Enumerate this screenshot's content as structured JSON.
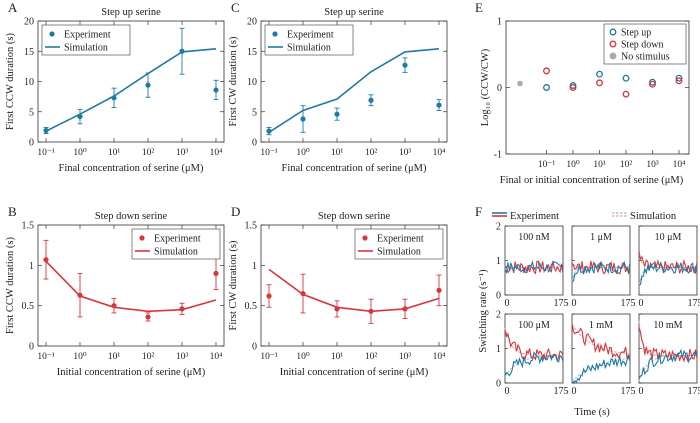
{
  "panels": [
    {
      "id": "A",
      "letter": "A",
      "title": "Step up serine",
      "ylabel": "First CCW duration (s)",
      "xlabel": "Final concentration of serine (μM)",
      "ylim": [
        0,
        20
      ],
      "yticks": [
        "0",
        "5",
        "10",
        "15",
        "20"
      ],
      "xticks": [
        "10⁻¹",
        "10⁰",
        "10¹",
        "10²",
        "10³",
        "10⁴"
      ],
      "color": "#1f7aa6",
      "legend_pos": "top-left",
      "legend": [
        "Experiment",
        "Simulation"
      ],
      "experiment": [
        {
          "x": -1,
          "y": 1.9,
          "err": 0.5
        },
        {
          "x": 0,
          "y": 4.2,
          "err": 1.2
        },
        {
          "x": 1,
          "y": 7.3,
          "err": 1.6
        },
        {
          "x": 2,
          "y": 9.4,
          "err": 2.0
        },
        {
          "x": 3,
          "y": 15.0,
          "err": 3.8
        },
        {
          "x": 4,
          "y": 8.6,
          "err": 1.6
        }
      ],
      "simulation": {
        "x": [
          -1,
          0,
          1,
          2,
          3,
          4
        ],
        "y": [
          1.8,
          4.6,
          7.6,
          11.3,
          14.9,
          15.4
        ]
      }
    },
    {
      "id": "C",
      "letter": "C",
      "title": "Step up serine",
      "ylabel": "First CW duration (s)",
      "xlabel": "Final concentration of serine (μM)",
      "ylim": [
        0,
        20
      ],
      "yticks": [
        "0",
        "5",
        "10",
        "15",
        "20"
      ],
      "xticks": [
        "10⁻¹",
        "10⁰",
        "10¹",
        "10²",
        "10³",
        "10⁴"
      ],
      "color": "#1f7aa6",
      "legend_pos": "top-left",
      "legend": [
        "Experiment",
        "Simulation"
      ],
      "experiment": [
        {
          "x": -1,
          "y": 1.8,
          "err": 0.6
        },
        {
          "x": 0,
          "y": 3.8,
          "err": 2.2
        },
        {
          "x": 1,
          "y": 4.6,
          "err": 1.0
        },
        {
          "x": 2,
          "y": 6.9,
          "err": 0.9
        },
        {
          "x": 3,
          "y": 12.7,
          "err": 1.2
        },
        {
          "x": 4,
          "y": 6.1,
          "err": 0.9
        }
      ],
      "simulation": {
        "x": [
          -1,
          0,
          1,
          2,
          3,
          4
        ],
        "y": [
          1.6,
          5.2,
          7.1,
          11.6,
          14.9,
          15.4
        ]
      }
    },
    {
      "id": "B",
      "letter": "B",
      "title": "Step down serine",
      "ylabel": "First CCW duration (s)",
      "xlabel": "Initial concentration of serine (μM)",
      "ylim": [
        0,
        1.5
      ],
      "yticks": [
        "0",
        "0.5",
        "1",
        "1.5"
      ],
      "xticks": [
        "10⁻¹",
        "10⁰",
        "10¹",
        "10²",
        "10³",
        "10⁴"
      ],
      "color": "#d6373c",
      "legend_pos": "top-right",
      "legend": [
        "Experiment",
        "Simulation"
      ],
      "experiment": [
        {
          "x": -1,
          "y": 1.07,
          "err": 0.24
        },
        {
          "x": 0,
          "y": 0.63,
          "err": 0.27
        },
        {
          "x": 1,
          "y": 0.5,
          "err": 0.09
        },
        {
          "x": 2,
          "y": 0.36,
          "err": 0.05
        },
        {
          "x": 3,
          "y": 0.46,
          "err": 0.07
        },
        {
          "x": 4,
          "y": 0.9,
          "err": 0.2
        }
      ],
      "simulation": {
        "x": [
          -1,
          0,
          1,
          2,
          3,
          4
        ],
        "y": [
          1.05,
          0.62,
          0.48,
          0.43,
          0.45,
          0.57
        ]
      }
    },
    {
      "id": "D",
      "letter": "D",
      "title": "Step down serine",
      "ylabel": "First CW duration (s)",
      "xlabel": "Initial concentration of serine (μM)",
      "ylim": [
        0,
        1.5
      ],
      "yticks": [
        "0",
        "0.5",
        "1",
        "1.5"
      ],
      "xticks": [
        "10⁻¹",
        "10⁰",
        "10¹",
        "10²",
        "10³",
        "10⁴"
      ],
      "color": "#d6373c",
      "legend_pos": "top-right",
      "legend": [
        "Experiment",
        "Simulation"
      ],
      "experiment": [
        {
          "x": -1,
          "y": 0.62,
          "err": 0.14
        },
        {
          "x": 0,
          "y": 0.65,
          "err": 0.24
        },
        {
          "x": 1,
          "y": 0.46,
          "err": 0.1
        },
        {
          "x": 2,
          "y": 0.43,
          "err": 0.15
        },
        {
          "x": 3,
          "y": 0.46,
          "err": 0.12
        },
        {
          "x": 4,
          "y": 0.69,
          "err": 0.19
        }
      ],
      "simulation": {
        "x": [
          -1,
          0,
          1,
          2,
          3,
          4
        ],
        "y": [
          0.95,
          0.64,
          0.48,
          0.43,
          0.46,
          0.59
        ]
      }
    }
  ],
  "panel_e": {
    "letter": "E",
    "ylabel": "Log₁₀ (CCW/CW)",
    "xlabel": "Final or initial concentration of serine (μM)",
    "ylim": [
      -1,
      1
    ],
    "yticks": [
      "-1",
      "0",
      "1"
    ],
    "xticks": [
      "10⁻¹",
      "10⁰",
      "10¹",
      "10²",
      "10³",
      "10⁴"
    ],
    "legend": [
      "Step up",
      "Step down",
      "No stimulus"
    ],
    "colors": {
      "up": "#1f7aa6",
      "down": "#d6373c",
      "none": "#aaaaaa"
    },
    "step_up": {
      "x": [
        -1,
        0,
        1,
        2,
        3,
        4
      ],
      "y": [
        0.0,
        0.03,
        0.2,
        0.14,
        0.08,
        0.14
      ]
    },
    "step_down": {
      "x": [
        -1,
        0,
        1,
        2,
        3,
        4
      ],
      "y": [
        0.25,
        0.0,
        0.07,
        -0.1,
        0.05,
        0.1
      ]
    },
    "no_stimulus": {
      "x": [
        -2
      ],
      "y": [
        0.06
      ]
    }
  },
  "panel_f": {
    "letter": "F",
    "legend_experiment": "Experiment",
    "legend_simulation": "Simulation",
    "ylabel": "Switching rate (s⁻¹)",
    "xlabel": "Time (s)",
    "ylim": [
      0,
      2
    ],
    "yticks": [
      "0",
      "1",
      "2"
    ],
    "xlim": [
      0,
      175
    ],
    "xticks": [
      "0",
      "175"
    ],
    "colors": {
      "blue": "#1f7aa6",
      "red": "#d6373c",
      "sim_blue": "#9fb8d6",
      "sim_red": "#e0a0a4"
    },
    "subplots": [
      {
        "label": "100 nM",
        "ccw_start": 0.8,
        "cw_start": 0.8,
        "blue_tau": 0,
        "red_tau": 0
      },
      {
        "label": "1 μM",
        "ccw_start": 0.4,
        "cw_start": 1.0,
        "blue_tau": 8,
        "red_tau": 6
      },
      {
        "label": "10 μM",
        "ccw_start": 0.3,
        "cw_start": 1.2,
        "blue_tau": 10,
        "red_tau": 8
      },
      {
        "label": "100 μM",
        "ccw_start": 0.2,
        "cw_start": 1.6,
        "blue_tau": 40,
        "red_tau": 20
      },
      {
        "label": "1 mM",
        "ccw_start": 0.05,
        "cw_start": 1.7,
        "blue_tau": 80,
        "red_tau": 60
      },
      {
        "label": "10 mM",
        "ccw_start": 0.05,
        "cw_start": 1.8,
        "blue_tau": 25,
        "red_tau": 10
      }
    ]
  }
}
